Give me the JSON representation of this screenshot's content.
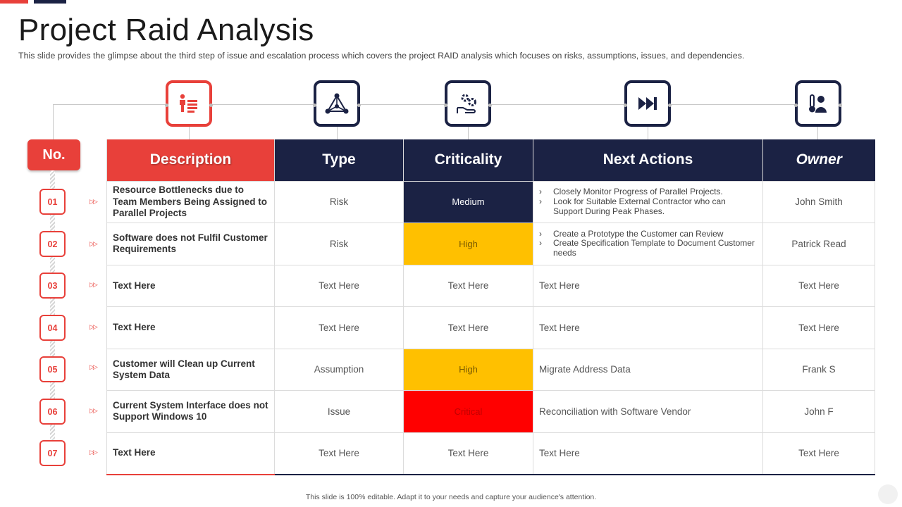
{
  "slide": {
    "title": "Project Raid Analysis",
    "subtitle": "This slide provides  the glimpse about the third step of issue and escalation process which covers the project RAID  analysis which focuses on risks, assumptions, issues, and dependencies.",
    "no_label": "No.",
    "footer": "This slide is 100% editable. Adapt it to your needs and capture your audience's attention."
  },
  "columns": [
    "Description",
    "Type",
    "Criticality",
    "Next Actions",
    "Owner"
  ],
  "icons": [
    "info-list-icon",
    "network-triangle-icon",
    "gear-hand-icon",
    "fast-forward-icon",
    "person-thermometer-icon"
  ],
  "rows": [
    {
      "num": "01",
      "description": "Resource Bottlenecks due to Team Members Being Assigned to Parallel Projects",
      "type": "Risk",
      "criticality": "Medium",
      "crit_style": "medium",
      "actions": [
        "Closely Monitor Progress of Parallel Projects.",
        "Look for Suitable External Contractor who can Support During Peak Phases."
      ],
      "owner": "John Smith"
    },
    {
      "num": "02",
      "description": "Software does not Fulfil Customer Requirements",
      "type": "Risk",
      "criticality": "High",
      "crit_style": "high",
      "actions": [
        "Create a Prototype the Customer can Review",
        "Create Specification Template to Document Customer needs"
      ],
      "owner": "Patrick Read"
    },
    {
      "num": "03",
      "description": "Text Here",
      "type": "Text Here",
      "criticality": "Text Here",
      "crit_style": "",
      "action_text": "Text Here",
      "owner": "Text Here"
    },
    {
      "num": "04",
      "description": "Text Here",
      "type": "Text Here",
      "criticality": "Text Here",
      "crit_style": "",
      "action_text": "Text Here",
      "owner": "Text Here"
    },
    {
      "num": "05",
      "description": "Customer  will Clean up Current System Data",
      "type": "Assumption",
      "criticality": "High",
      "crit_style": "high",
      "action_text": "Migrate Address Data",
      "owner": "Frank S"
    },
    {
      "num": "06",
      "description": "Current System Interface does not Support Windows 10",
      "type": "Issue",
      "criticality": "Critical",
      "crit_style": "critical",
      "action_text": "Reconciliation with Software  Vendor",
      "owner": "John F"
    },
    {
      "num": "07",
      "description": "Text Here",
      "type": "Text Here",
      "criticality": "Text Here",
      "crit_style": "",
      "action_text": "Text Here",
      "owner": "Text Here"
    }
  ],
  "colors": {
    "accent_red": "#e8403a",
    "navy": "#1b2244",
    "high": "#ffc000",
    "critical": "#ff0000"
  }
}
